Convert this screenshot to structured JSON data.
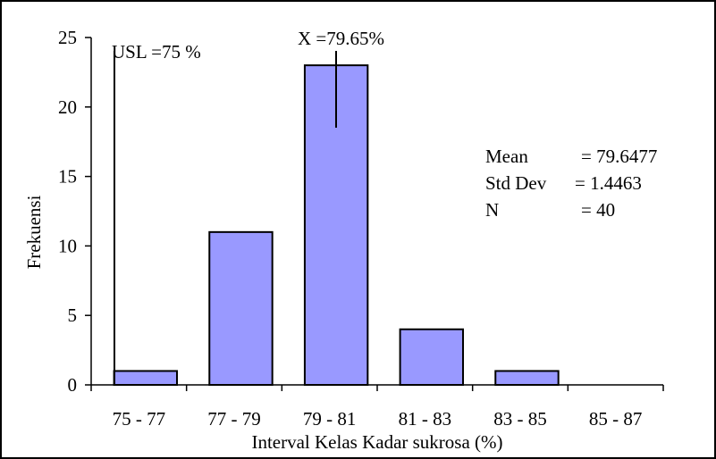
{
  "chart_data": {
    "type": "bar",
    "categories": [
      "75 - 77",
      "77 - 79",
      "79 - 81",
      "81 - 83",
      "83 - 85",
      "85 - 87"
    ],
    "values": [
      1,
      11,
      23,
      4,
      1,
      0
    ],
    "xlabel": "Interval Kelas Kadar sukrosa (%)",
    "ylabel": "Frekuensi",
    "ylim": [
      0,
      25
    ],
    "yticks": [
      0,
      5,
      10,
      15,
      20,
      25
    ],
    "grid": false,
    "bar_color": "#9999ff",
    "annotations": {
      "usl_label": "USL =75 %",
      "mean_label": "X =79.65%",
      "stats": [
        {
          "name": "Mean",
          "value": "= 79.6477"
        },
        {
          "name": "Std Dev",
          "value": "= 1.4463"
        },
        {
          "name": "N",
          "value": "=  40"
        }
      ]
    }
  }
}
